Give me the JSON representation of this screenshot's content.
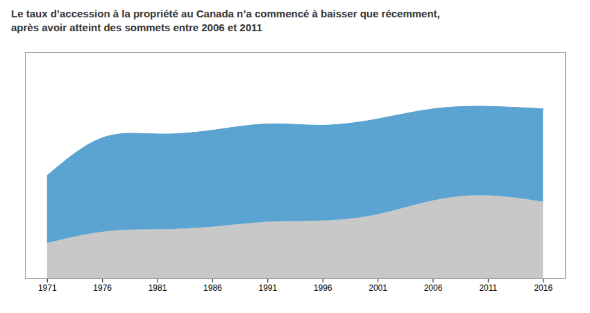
{
  "chart_data": {
    "type": "area",
    "title": "Le taux d’accession à la propriété au Canada n’a commencé à baisser que récemment,\naprès avoir atteint des sommets entre 2006 et 2011",
    "x": [
      1971,
      1976,
      1981,
      1986,
      1991,
      1996,
      2001,
      2006,
      2011,
      2016
    ],
    "series": [
      {
        "color": "#C8C8C8",
        "values": [
          14.0,
          18.5,
          19.5,
          20.5,
          22.5,
          23.0,
          25.5,
          31.0,
          33.0,
          30.5
        ]
      },
      {
        "color": "#5BA3D0",
        "values": [
          41.0,
          56.0,
          57.5,
          59.0,
          61.5,
          61.0,
          63.5,
          67.5,
          68.5,
          67.5
        ]
      }
    ],
    "stacked": false,
    "xlim": [
      1969,
      2018
    ],
    "xticks": [
      1971,
      1976,
      1981,
      1986,
      1991,
      1996,
      2001,
      2006,
      2011,
      2016
    ],
    "ylim": [
      0,
      90
    ],
    "tick_labels": "x",
    "grid": false
  }
}
